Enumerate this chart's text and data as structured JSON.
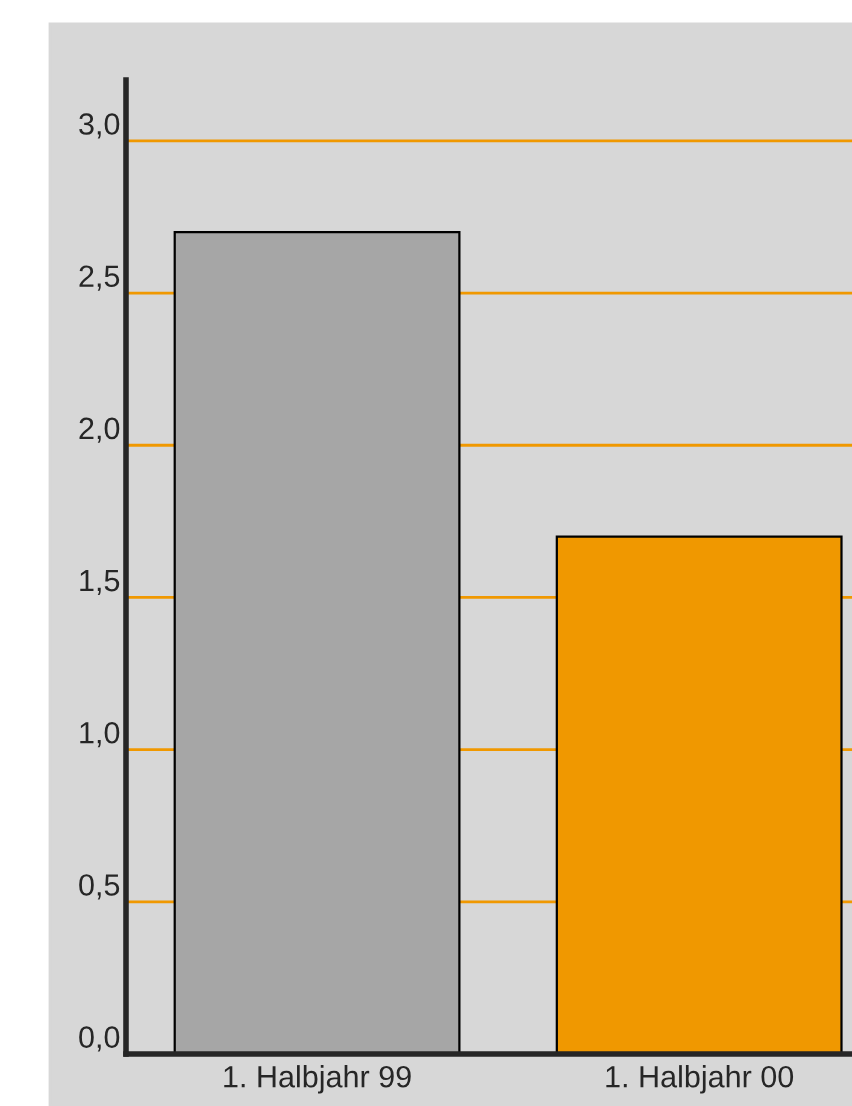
{
  "chart_data": {
    "type": "bar",
    "categories": [
      "1. Halbjahr 99",
      "1. Halbjahr 00"
    ],
    "values": [
      2.7,
      1.7
    ],
    "colors": [
      "#a6a6a6",
      "#f09800"
    ],
    "ylim": [
      0,
      3.2
    ],
    "yticks": [
      {
        "value": 0,
        "label": "0,0"
      },
      {
        "value": 0.5,
        "label": "0,5"
      },
      {
        "value": 1,
        "label": "1,0"
      },
      {
        "value": 1.5,
        "label": "1,5"
      },
      {
        "value": 2,
        "label": "2,0"
      },
      {
        "value": 2.5,
        "label": "2,5"
      },
      {
        "value": 3,
        "label": "3,0"
      }
    ],
    "grid": "y"
  }
}
